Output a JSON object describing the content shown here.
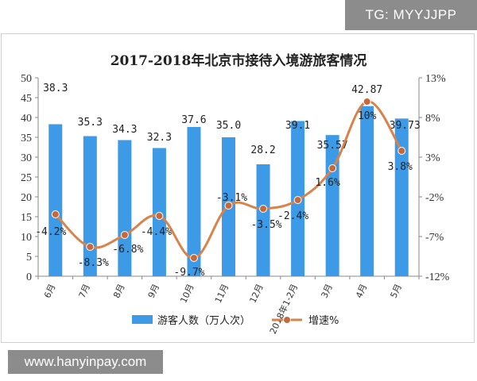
{
  "watermark": {
    "tag": "TG: MYYJJPP",
    "url": "www.hanyinpay.com"
  },
  "colors": {
    "bar": "#3d9ae6",
    "line": "#d9824a",
    "marker": "#c8683a",
    "axis": "#888888"
  },
  "chart_data": {
    "type": "bar",
    "title": "2017-2018年北京市接待入境游旅客情况",
    "categories": [
      "6月",
      "7月",
      "8月",
      "9月",
      "10月",
      "11月",
      "12月",
      "2018年1-2月",
      "3月",
      "4月",
      "5月"
    ],
    "series": [
      {
        "name": "游客人数（万人次）",
        "type": "bar",
        "axis": "left",
        "values": [
          38.3,
          35.3,
          34.3,
          32.3,
          37.6,
          35.0,
          28.2,
          39.1,
          35.57,
          42.87,
          39.73
        ],
        "labels": [
          "38.3",
          "35.3",
          "34.3",
          "32.3",
          "37.6",
          "35.0",
          "28.2",
          "39.1",
          "35.57",
          "42.87",
          "39.73"
        ]
      },
      {
        "name": "增速%",
        "type": "line",
        "axis": "right",
        "values": [
          -4.2,
          -8.3,
          -6.8,
          -4.4,
          -9.7,
          -3.1,
          -3.5,
          -2.4,
          1.6,
          10.0,
          3.8
        ],
        "labels": [
          "-4.2%",
          "-8.3%",
          "-6.8%",
          "-4.4%",
          "-9.7%",
          "-3.1%",
          "-3.5%",
          "-2.4%",
          "1.6%",
          "10%",
          "3.8%"
        ]
      }
    ],
    "y_left": {
      "min": 0,
      "max": 50,
      "ticks": [
        "0",
        "5",
        "10",
        "15",
        "20",
        "25",
        "30",
        "35",
        "40",
        "45",
        "50"
      ]
    },
    "y_right": {
      "min": -12,
      "max": 13,
      "ticks": [
        "-12%",
        "-7%",
        "-2%",
        "3%",
        "8%",
        "13%"
      ]
    },
    "legend_position": "bottom",
    "grid": false
  }
}
